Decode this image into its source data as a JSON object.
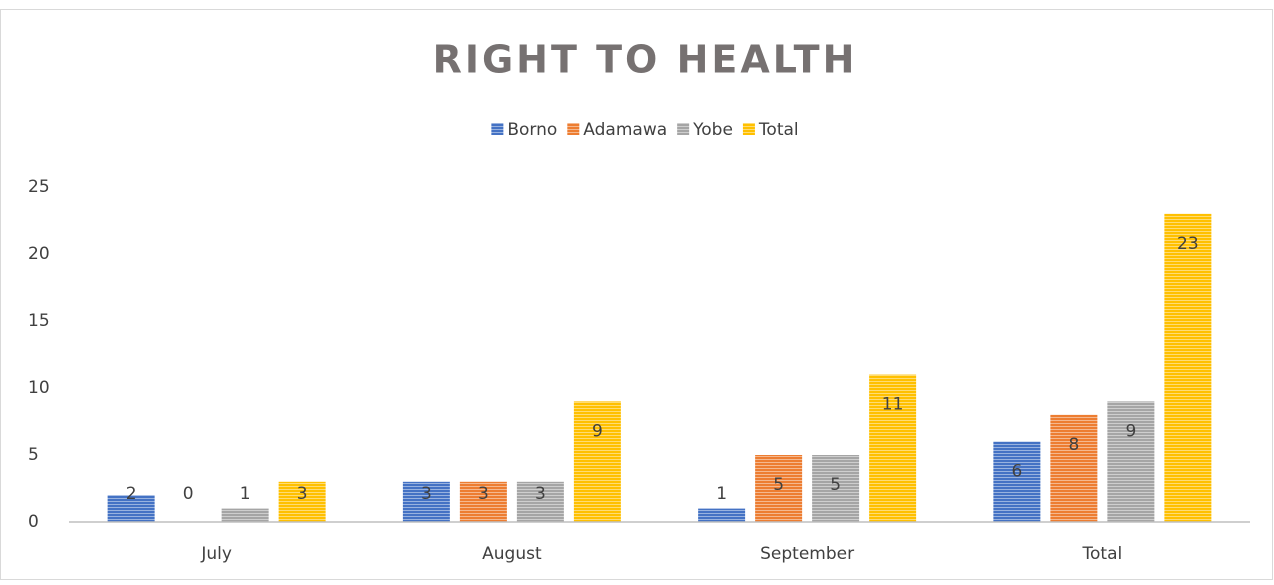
{
  "chart_data": {
    "type": "bar",
    "title": "RIGHT TO HEALTH",
    "categories": [
      "July",
      "August",
      "September",
      "Total"
    ],
    "series": [
      {
        "name": "Borno",
        "color": "#4472c4",
        "values": [
          2,
          3,
          1,
          6
        ]
      },
      {
        "name": "Adamawa",
        "color": "#ed7d31",
        "values": [
          0,
          3,
          5,
          8
        ]
      },
      {
        "name": "Yobe",
        "color": "#a5a5a5",
        "values": [
          1,
          3,
          5,
          9
        ]
      },
      {
        "name": "Total",
        "color": "#ffc000",
        "values": [
          3,
          9,
          11,
          23
        ]
      }
    ],
    "ylim": [
      0,
      25
    ],
    "yticks": [
      0,
      5,
      10,
      15,
      20,
      25
    ],
    "grid": false,
    "legend": "top"
  }
}
